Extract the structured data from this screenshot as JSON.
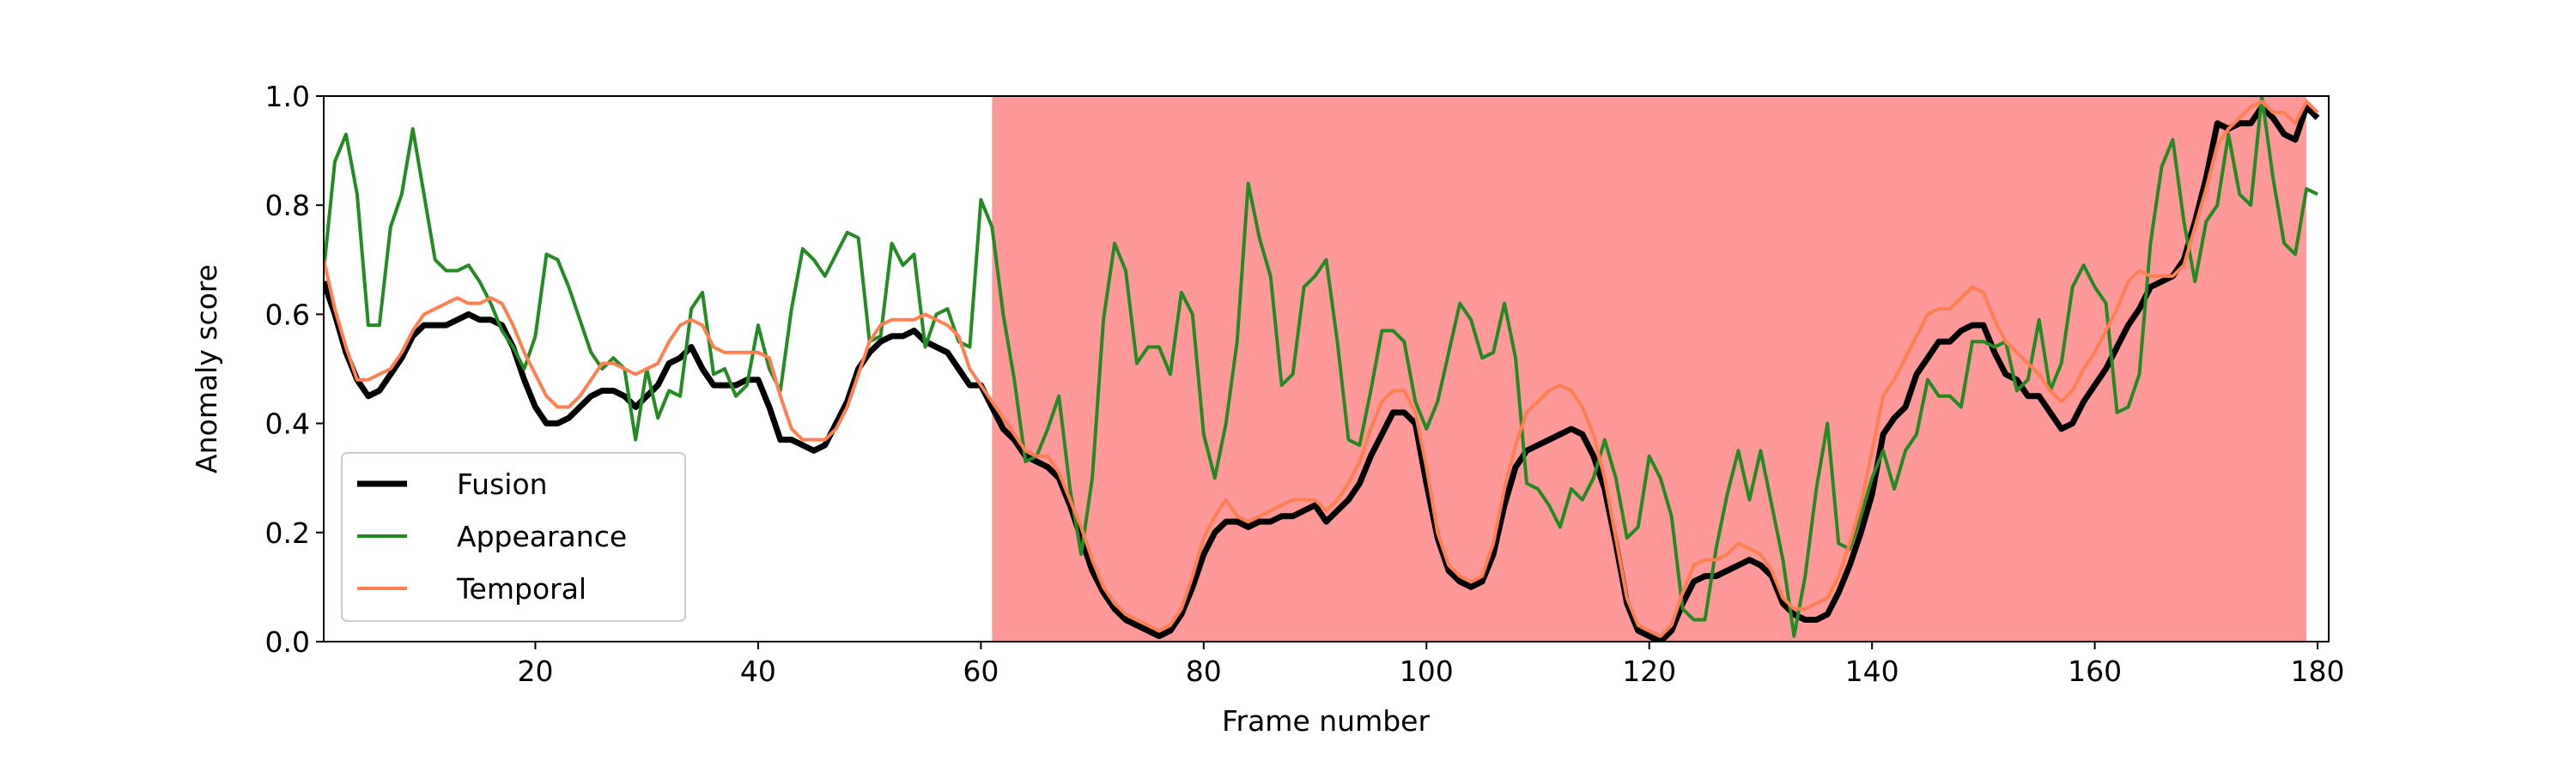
{
  "chart_data": {
    "type": "line",
    "xlabel": "Frame number",
    "ylabel": "Anomaly score",
    "xlim": [
      1,
      181
    ],
    "ylim": [
      0,
      1
    ],
    "xticks": [
      20,
      40,
      60,
      80,
      100,
      120,
      140,
      160,
      180
    ],
    "yticks": [
      {
        "value": 0,
        "label": "0.0"
      },
      0.2,
      0.4,
      0.6,
      0.8,
      {
        "value": 1,
        "label": "1.0"
      }
    ],
    "legend": "lower left",
    "shaded_regions": [
      {
        "start": 61,
        "end": 179,
        "color": "#ff9999"
      }
    ],
    "x": [
      1,
      2,
      3,
      4,
      5,
      6,
      7,
      8,
      9,
      10,
      11,
      12,
      13,
      14,
      15,
      16,
      17,
      18,
      19,
      20,
      21,
      22,
      23,
      24,
      25,
      26,
      27,
      28,
      29,
      30,
      31,
      32,
      33,
      34,
      35,
      36,
      37,
      38,
      39,
      40,
      41,
      42,
      43,
      44,
      45,
      46,
      47,
      48,
      49,
      50,
      51,
      52,
      53,
      54,
      55,
      56,
      57,
      58,
      59,
      60,
      61,
      62,
      63,
      64,
      65,
      66,
      67,
      68,
      69,
      70,
      71,
      72,
      73,
      74,
      75,
      76,
      77,
      78,
      79,
      80,
      81,
      82,
      83,
      84,
      85,
      86,
      87,
      88,
      89,
      90,
      91,
      92,
      93,
      94,
      95,
      96,
      97,
      98,
      99,
      100,
      101,
      102,
      103,
      104,
      105,
      106,
      107,
      108,
      109,
      110,
      111,
      112,
      113,
      114,
      115,
      116,
      117,
      118,
      119,
      120,
      121,
      122,
      123,
      124,
      125,
      126,
      127,
      128,
      129,
      130,
      131,
      132,
      133,
      134,
      135,
      136,
      137,
      138,
      139,
      140,
      141,
      142,
      143,
      144,
      145,
      146,
      147,
      148,
      149,
      150,
      151,
      152,
      153,
      154,
      155,
      156,
      157,
      158,
      159,
      160,
      161,
      162,
      163,
      164,
      165,
      166,
      167,
      168,
      169,
      170,
      171,
      172,
      173,
      174,
      175,
      176,
      177,
      178,
      179,
      180
    ],
    "series": [
      {
        "name": "Fusion",
        "color": "#000000",
        "width": 7,
        "values": [
          0.66,
          0.6,
          0.53,
          0.48,
          0.45,
          0.46,
          0.49,
          0.52,
          0.56,
          0.58,
          0.58,
          0.58,
          0.59,
          0.6,
          0.59,
          0.59,
          0.58,
          0.54,
          0.48,
          0.43,
          0.4,
          0.4,
          0.41,
          0.43,
          0.45,
          0.46,
          0.46,
          0.45,
          0.43,
          0.45,
          0.47,
          0.51,
          0.52,
          0.54,
          0.5,
          0.47,
          0.47,
          0.47,
          0.48,
          0.48,
          0.43,
          0.37,
          0.37,
          0.36,
          0.35,
          0.36,
          0.4,
          0.44,
          0.5,
          0.53,
          0.55,
          0.56,
          0.56,
          0.57,
          0.55,
          0.54,
          0.53,
          0.5,
          0.47,
          0.47,
          0.43,
          0.39,
          0.37,
          0.34,
          0.33,
          0.32,
          0.3,
          0.25,
          0.19,
          0.13,
          0.09,
          0.06,
          0.04,
          0.03,
          0.02,
          0.01,
          0.02,
          0.05,
          0.1,
          0.16,
          0.2,
          0.22,
          0.22,
          0.21,
          0.22,
          0.22,
          0.23,
          0.23,
          0.24,
          0.25,
          0.22,
          0.24,
          0.26,
          0.29,
          0.34,
          0.38,
          0.42,
          0.42,
          0.4,
          0.29,
          0.19,
          0.13,
          0.11,
          0.1,
          0.11,
          0.16,
          0.25,
          0.32,
          0.35,
          0.36,
          0.37,
          0.38,
          0.39,
          0.38,
          0.34,
          0.28,
          0.18,
          0.07,
          0.02,
          0.01,
          0.0,
          0.02,
          0.07,
          0.11,
          0.12,
          0.12,
          0.13,
          0.14,
          0.15,
          0.14,
          0.12,
          0.07,
          0.05,
          0.04,
          0.04,
          0.05,
          0.09,
          0.14,
          0.2,
          0.27,
          0.38,
          0.41,
          0.43,
          0.49,
          0.52,
          0.55,
          0.55,
          0.57,
          0.58,
          0.58,
          0.53,
          0.49,
          0.48,
          0.45,
          0.45,
          0.42,
          0.39,
          0.4,
          0.44,
          0.47,
          0.5,
          0.54,
          0.58,
          0.61,
          0.65,
          0.66,
          0.67,
          0.7,
          0.77,
          0.85,
          0.95,
          0.94,
          0.95,
          0.95,
          0.98,
          0.96,
          0.93,
          0.92,
          0.98,
          0.96
        ]
      },
      {
        "name": "Appearance",
        "color": "#228b22",
        "width": 4,
        "values": [
          0.68,
          0.88,
          0.93,
          0.82,
          0.58,
          0.58,
          0.76,
          0.82,
          0.94,
          0.82,
          0.7,
          0.68,
          0.68,
          0.69,
          0.66,
          0.62,
          0.57,
          0.54,
          0.5,
          0.56,
          0.71,
          0.7,
          0.65,
          0.59,
          0.53,
          0.5,
          0.52,
          0.5,
          0.37,
          0.5,
          0.41,
          0.46,
          0.45,
          0.61,
          0.64,
          0.49,
          0.5,
          0.45,
          0.47,
          0.58,
          0.5,
          0.46,
          0.61,
          0.72,
          0.7,
          0.67,
          0.71,
          0.75,
          0.74,
          0.55,
          0.56,
          0.73,
          0.69,
          0.71,
          0.54,
          0.6,
          0.61,
          0.55,
          0.54,
          0.81,
          0.76,
          0.6,
          0.48,
          0.33,
          0.34,
          0.39,
          0.45,
          0.28,
          0.16,
          0.3,
          0.59,
          0.73,
          0.68,
          0.51,
          0.54,
          0.54,
          0.49,
          0.64,
          0.6,
          0.38,
          0.3,
          0.4,
          0.55,
          0.84,
          0.74,
          0.67,
          0.47,
          0.49,
          0.65,
          0.67,
          0.7,
          0.55,
          0.37,
          0.36,
          0.46,
          0.57,
          0.57,
          0.55,
          0.44,
          0.39,
          0.44,
          0.53,
          0.62,
          0.59,
          0.52,
          0.53,
          0.62,
          0.52,
          0.29,
          0.28,
          0.25,
          0.21,
          0.28,
          0.26,
          0.3,
          0.37,
          0.3,
          0.19,
          0.21,
          0.34,
          0.3,
          0.23,
          0.06,
          0.04,
          0.04,
          0.17,
          0.27,
          0.35,
          0.26,
          0.35,
          0.25,
          0.15,
          0.01,
          0.12,
          0.28,
          0.4,
          0.18,
          0.17,
          0.23,
          0.3,
          0.35,
          0.28,
          0.35,
          0.38,
          0.48,
          0.45,
          0.45,
          0.43,
          0.55,
          0.55,
          0.54,
          0.55,
          0.46,
          0.48,
          0.59,
          0.46,
          0.51,
          0.65,
          0.69,
          0.65,
          0.62,
          0.42,
          0.43,
          0.49,
          0.73,
          0.87,
          0.92,
          0.77,
          0.66,
          0.77,
          0.8,
          0.93,
          0.82,
          0.8,
          1.0,
          0.85,
          0.73,
          0.71,
          0.83,
          0.82
        ]
      },
      {
        "name": "Temporal",
        "color": "#ff7f50",
        "width": 4,
        "values": [
          0.7,
          0.61,
          0.54,
          0.48,
          0.48,
          0.49,
          0.5,
          0.53,
          0.57,
          0.6,
          0.61,
          0.62,
          0.63,
          0.62,
          0.62,
          0.63,
          0.62,
          0.58,
          0.53,
          0.49,
          0.45,
          0.43,
          0.43,
          0.45,
          0.48,
          0.51,
          0.51,
          0.5,
          0.49,
          0.5,
          0.51,
          0.55,
          0.58,
          0.59,
          0.58,
          0.54,
          0.53,
          0.53,
          0.53,
          0.53,
          0.52,
          0.45,
          0.39,
          0.37,
          0.37,
          0.37,
          0.39,
          0.43,
          0.49,
          0.55,
          0.58,
          0.59,
          0.59,
          0.59,
          0.6,
          0.59,
          0.58,
          0.56,
          0.5,
          0.47,
          0.44,
          0.41,
          0.38,
          0.35,
          0.34,
          0.34,
          0.31,
          0.26,
          0.21,
          0.15,
          0.1,
          0.07,
          0.05,
          0.04,
          0.03,
          0.02,
          0.03,
          0.06,
          0.12,
          0.19,
          0.23,
          0.26,
          0.23,
          0.22,
          0.23,
          0.24,
          0.25,
          0.26,
          0.26,
          0.26,
          0.24,
          0.26,
          0.29,
          0.33,
          0.39,
          0.44,
          0.46,
          0.46,
          0.42,
          0.32,
          0.2,
          0.14,
          0.12,
          0.11,
          0.12,
          0.18,
          0.28,
          0.36,
          0.42,
          0.44,
          0.46,
          0.47,
          0.46,
          0.43,
          0.38,
          0.3,
          0.19,
          0.08,
          0.03,
          0.02,
          0.01,
          0.03,
          0.09,
          0.14,
          0.15,
          0.15,
          0.16,
          0.18,
          0.17,
          0.16,
          0.13,
          0.08,
          0.06,
          0.06,
          0.07,
          0.08,
          0.12,
          0.18,
          0.25,
          0.35,
          0.45,
          0.48,
          0.52,
          0.56,
          0.6,
          0.61,
          0.61,
          0.63,
          0.65,
          0.64,
          0.59,
          0.55,
          0.53,
          0.51,
          0.49,
          0.46,
          0.44,
          0.46,
          0.5,
          0.53,
          0.57,
          0.61,
          0.66,
          0.68,
          0.67,
          0.67,
          0.67,
          0.69,
          0.76,
          0.83,
          0.91,
          0.94,
          0.96,
          0.98,
          0.99,
          0.97,
          0.97,
          0.95,
          0.99,
          0.97
        ]
      }
    ]
  }
}
